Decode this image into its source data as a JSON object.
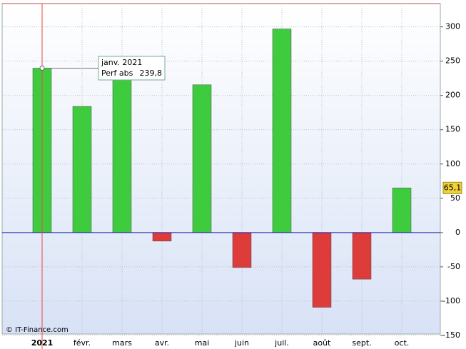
{
  "chart_data": {
    "type": "bar",
    "categories": [
      "2021",
      "févr.",
      "mars",
      "avr.",
      "mai",
      "juin",
      "juil.",
      "août",
      "sept.",
      "oct."
    ],
    "values": [
      239.8,
      184,
      227,
      -12.5,
      215.5,
      -51,
      297,
      -109,
      -68,
      65.1
    ],
    "positive_color": "#3ecc3e",
    "negative_color": "#de3b3b",
    "zero_line_color": "#1a1aaa",
    "ylim": [
      -148,
      334
    ],
    "yticks": [
      300,
      250,
      200,
      150,
      100,
      50,
      0,
      -50,
      -100,
      -150
    ],
    "grid": true,
    "tooltip": {
      "title": "janv. 2021",
      "series_label": "Perf abs",
      "value_label": "239,8"
    },
    "last_value_label": "65,1",
    "credit": "© IT-Finance.com"
  }
}
